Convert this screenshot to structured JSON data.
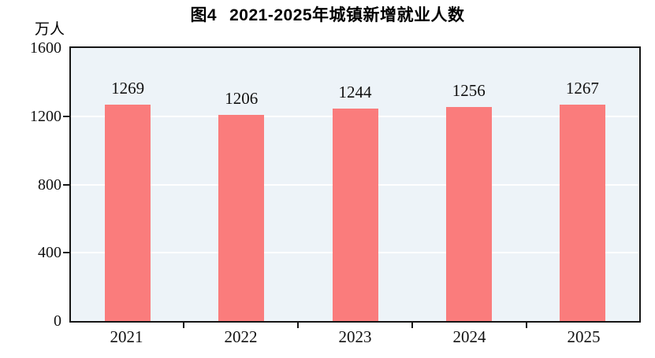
{
  "chart_data": {
    "type": "bar",
    "title_prefix": "图4",
    "title": "2021-2025年城镇新增就业人数",
    "ylabel": "万人",
    "categories": [
      "2021",
      "2022",
      "2023",
      "2024",
      "2025"
    ],
    "values": [
      1269,
      1206,
      1244,
      1256,
      1267
    ],
    "ylim": [
      0,
      1600
    ],
    "yticks": [
      0,
      400,
      800,
      1200,
      1600
    ],
    "gridlines_at": [
      400,
      800,
      1200
    ],
    "legend": "none",
    "grid": "horizontal white lines on tinted plot background",
    "colors": {
      "bar": "#FA7C7C",
      "plot_background": "#EDF3F8",
      "gridline": "#FFFFFF",
      "axis": "#161616",
      "text": "#111111"
    }
  }
}
